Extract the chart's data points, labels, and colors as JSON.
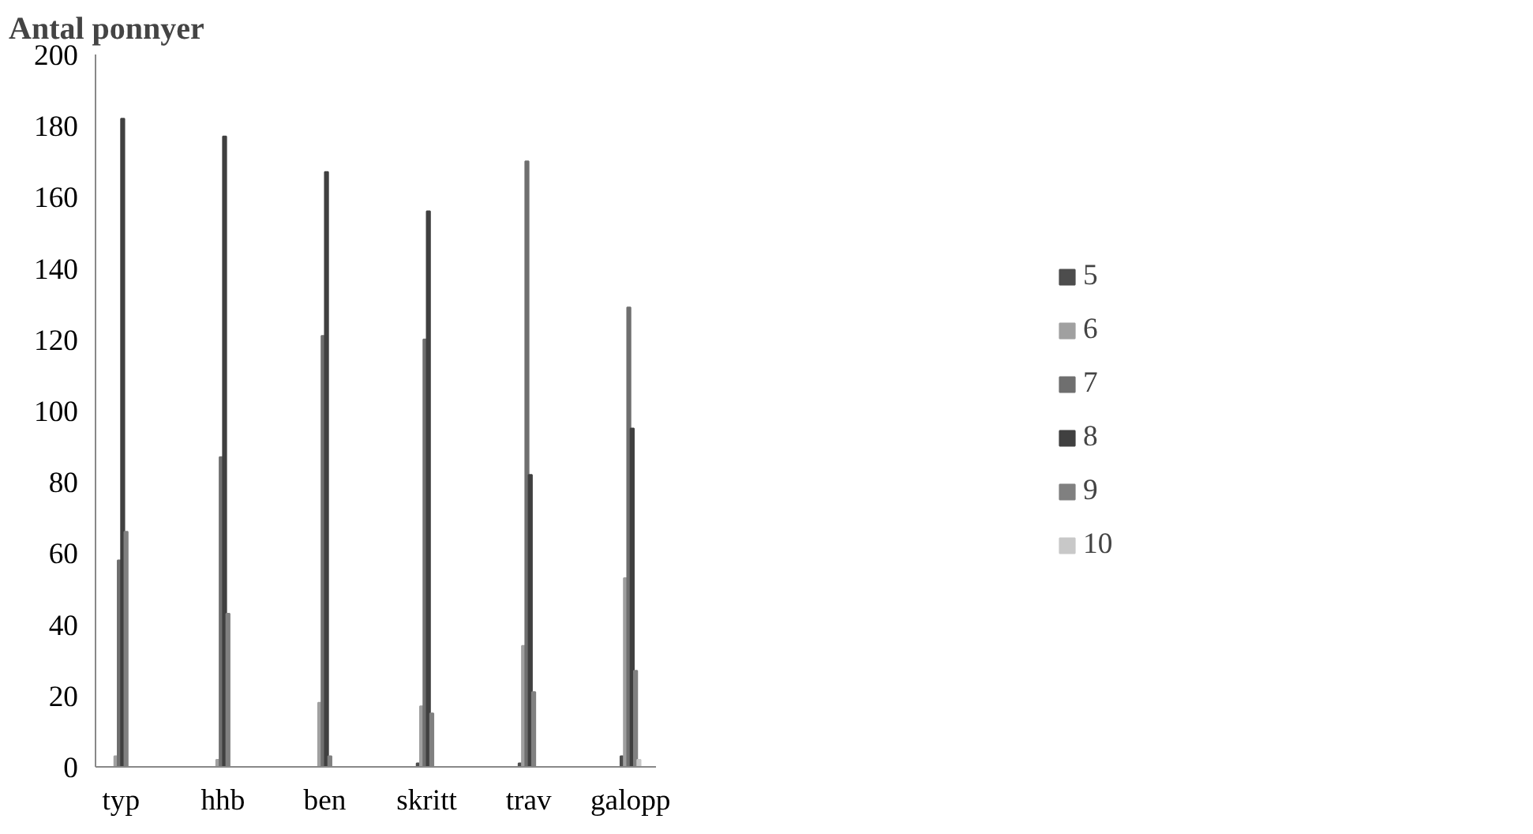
{
  "chart_data": {
    "type": "bar",
    "title": "Antal ponnyer",
    "categories": [
      "typ",
      null,
      "hhb",
      null,
      "ben",
      null,
      "skritt",
      null,
      "trav",
      null,
      "galopp"
    ],
    "series": [
      {
        "name": "5",
        "color": "#4d4d4d",
        "values": [
          0,
          null,
          0,
          null,
          0,
          null,
          1,
          null,
          1,
          null,
          3
        ]
      },
      {
        "name": "6",
        "color": "#a0a0a0",
        "values": [
          3,
          null,
          2,
          null,
          18,
          null,
          17,
          null,
          34,
          null,
          53
        ]
      },
      {
        "name": "7",
        "color": "#6f6f6f",
        "values": [
          58,
          null,
          87,
          null,
          121,
          null,
          120,
          null,
          170,
          null,
          129
        ]
      },
      {
        "name": "8",
        "color": "#404040",
        "values": [
          182,
          null,
          177,
          null,
          167,
          null,
          156,
          null,
          82,
          null,
          95
        ]
      },
      {
        "name": "9",
        "color": "#808080",
        "values": [
          66,
          null,
          43,
          null,
          3,
          null,
          15,
          null,
          21,
          null,
          27
        ]
      },
      {
        "name": "10",
        "color": "#c8c8c8",
        "values": [
          0,
          null,
          0,
          null,
          0,
          null,
          0,
          null,
          0,
          null,
          2
        ]
      }
    ],
    "ylim": [
      0,
      200
    ],
    "yticks": [
      0,
      20,
      40,
      60,
      80,
      100,
      120,
      140,
      160,
      180,
      200
    ],
    "grid": false,
    "legend": "right"
  }
}
